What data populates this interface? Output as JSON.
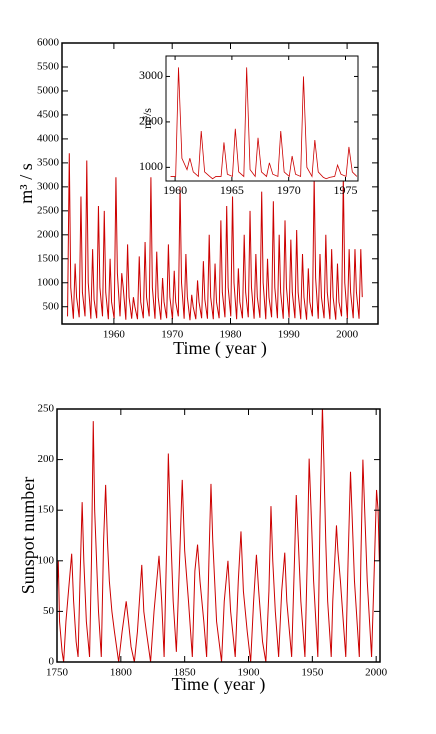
{
  "chart_data": [
    {
      "type": "line",
      "xlabel": "Time ( year )",
      "ylabel": "m³ / s",
      "color": "#cc0000",
      "xlim": [
        1951.1,
        2005.3
      ],
      "ylim": [
        140,
        6000
      ],
      "xticks": [
        1960,
        1970,
        1980,
        1990,
        2000
      ],
      "yticks": [
        500,
        1000,
        1500,
        2000,
        2500,
        3000,
        3500,
        4000,
        4500,
        5000,
        5500,
        6000
      ],
      "x": [
        1952.05,
        1952.35,
        1952.6,
        1953.05,
        1953.35,
        1953.6,
        1954.05,
        1954.35,
        1954.6,
        1955.05,
        1955.35,
        1955.6,
        1956.05,
        1956.35,
        1956.6,
        1957.05,
        1957.35,
        1957.6,
        1958.05,
        1958.35,
        1958.6,
        1959.05,
        1959.35,
        1959.6,
        1960.05,
        1960.35,
        1960.6,
        1961.05,
        1961.35,
        1961.6,
        1962.05,
        1962.35,
        1962.6,
        1963.05,
        1963.35,
        1963.6,
        1964.05,
        1964.35,
        1964.6,
        1965.05,
        1965.35,
        1965.6,
        1966.05,
        1966.35,
        1966.6,
        1967.05,
        1967.35,
        1967.6,
        1968.05,
        1968.35,
        1968.6,
        1969.05,
        1969.35,
        1969.6,
        1970.05,
        1970.35,
        1970.6,
        1971.05,
        1971.35,
        1971.6,
        1972.05,
        1972.35,
        1972.6,
        1973.05,
        1973.35,
        1973.6,
        1974.05,
        1974.35,
        1974.6,
        1975.05,
        1975.35,
        1975.6,
        1976.05,
        1976.35,
        1976.6,
        1977.05,
        1977.35,
        1977.6,
        1978.05,
        1978.35,
        1978.6,
        1979.05,
        1979.35,
        1979.6,
        1980.05,
        1980.35,
        1980.6,
        1981.05,
        1981.35,
        1981.6,
        1982.05,
        1982.35,
        1982.6,
        1983.05,
        1983.35,
        1983.6,
        1984.05,
        1984.35,
        1984.6,
        1985.05,
        1985.35,
        1985.6,
        1986.05,
        1986.35,
        1986.6,
        1987.05,
        1987.35,
        1987.6,
        1988.05,
        1988.35,
        1988.6,
        1989.05,
        1989.35,
        1989.6,
        1990.05,
        1990.35,
        1990.6,
        1991.05,
        1991.35,
        1991.6,
        1992.05,
        1992.35,
        1992.6,
        1993.05,
        1993.35,
        1993.6,
        1994.05,
        1994.35,
        1994.6,
        1995.05,
        1995.35,
        1995.6,
        1996.05,
        1996.35,
        1996.6,
        1997.05,
        1997.35,
        1997.6,
        1998.05,
        1998.35,
        1998.6,
        1999.05,
        1999.35,
        1999.6,
        2000.05,
        2000.35,
        2000.6,
        2001.05,
        2001.35,
        2001.6,
        2002.05,
        2002.35,
        2002.6
      ],
      "values": [
        300,
        3700,
        900,
        250,
        1400,
        700,
        280,
        2800,
        800,
        300,
        3550,
        1000,
        250,
        1700,
        650,
        260,
        2600,
        900,
        300,
        2500,
        800,
        240,
        1500,
        600,
        250,
        3200,
        1200,
        300,
        1200,
        900,
        230,
        1800,
        700,
        250,
        700,
        500,
        240,
        1550,
        600,
        260,
        1850,
        700,
        300,
        3200,
        900,
        250,
        1650,
        700,
        230,
        1100,
        600,
        260,
        1800,
        700,
        240,
        1250,
        600,
        300,
        3000,
        1000,
        250,
        1600,
        700,
        220,
        750,
        500,
        240,
        1050,
        600,
        260,
        1450,
        650,
        250,
        2000,
        700,
        240,
        1400,
        600,
        260,
        2300,
        800,
        280,
        2600,
        900,
        300,
        2800,
        1000,
        240,
        1300,
        600,
        260,
        2000,
        800,
        280,
        2500,
        900,
        250,
        1600,
        700,
        270,
        2900,
        1000,
        240,
        1500,
        700,
        280,
        2700,
        900,
        260,
        2000,
        800,
        250,
        2300,
        900,
        270,
        1900,
        800,
        260,
        2100,
        800,
        240,
        1600,
        700,
        230,
        1300,
        600,
        300,
        3200,
        1100,
        250,
        1600,
        700,
        260,
        2000,
        800,
        240,
        1700,
        700,
        230,
        1400,
        600,
        300,
        3200,
        1000,
        250,
        1700,
        800,
        260,
        1700,
        800,
        250,
        1700,
        700
      ]
    },
    {
      "type": "line",
      "ylabel": "m³/s",
      "color": "#cc0000",
      "xlim": [
        1959.2,
        1976.1
      ],
      "ylim": [
        700,
        3450
      ],
      "xticks": [
        1960,
        1965,
        1970,
        1975
      ],
      "yticks": [
        1000,
        2000,
        3000
      ],
      "x": [
        1959.6,
        1960.05,
        1960.3,
        1960.6,
        1961.05,
        1961.3,
        1961.6,
        1962.05,
        1962.3,
        1962.6,
        1963.05,
        1963.3,
        1963.6,
        1964.05,
        1964.3,
        1964.6,
        1965.05,
        1965.3,
        1965.6,
        1966.05,
        1966.3,
        1966.6,
        1967.05,
        1967.3,
        1967.6,
        1968.05,
        1968.3,
        1968.6,
        1969.05,
        1969.3,
        1969.6,
        1970.05,
        1970.3,
        1970.6,
        1971.05,
        1971.3,
        1971.6,
        1972.05,
        1972.3,
        1972.6,
        1973.05,
        1973.3,
        1973.6,
        1974.05,
        1974.3,
        1974.6,
        1975.05,
        1975.3,
        1975.6,
        1976.0
      ],
      "values": [
        800,
        800,
        3200,
        1200,
        950,
        1200,
        900,
        800,
        1800,
        900,
        800,
        750,
        800,
        800,
        1550,
        850,
        800,
        1850,
        900,
        800,
        3200,
        950,
        800,
        1650,
        900,
        800,
        1100,
        850,
        800,
        1800,
        900,
        800,
        1250,
        850,
        800,
        3000,
        1000,
        800,
        1600,
        900,
        780,
        750,
        780,
        800,
        1050,
        850,
        800,
        1450,
        900,
        800
      ]
    },
    {
      "type": "line",
      "xlabel": "Time ( year )",
      "ylabel": "Sunspot number",
      "color": "#cc0000",
      "xlim": [
        1750,
        2003
      ],
      "ylim": [
        0,
        250
      ],
      "xticks": [
        1750,
        1800,
        1850,
        1900,
        1950,
        2000
      ],
      "yticks": [
        0,
        50,
        100,
        150,
        200,
        250
      ],
      "x": [
        1750.0,
        1751.0,
        1752.0,
        1754.0,
        1755.2,
        1757.0,
        1759.0,
        1761.5,
        1763.0,
        1765.0,
        1766.5,
        1768.0,
        1769.7,
        1771.0,
        1773.0,
        1775.5,
        1777.0,
        1778.4,
        1779.5,
        1781.0,
        1782.5,
        1784.7,
        1786.5,
        1788.1,
        1789.5,
        1791.0,
        1793.0,
        1795.0,
        1798.3,
        1801.0,
        1804.2,
        1806.0,
        1808.0,
        1810.6,
        1813.0,
        1816.4,
        1818.0,
        1820.0,
        1823.3,
        1826.0,
        1829.9,
        1832.0,
        1833.9,
        1836.0,
        1837.2,
        1839.0,
        1841.0,
        1843.5,
        1846.0,
        1848.1,
        1850.0,
        1853.0,
        1856.0,
        1858.0,
        1860.1,
        1862.0,
        1865.0,
        1867.2,
        1869.0,
        1870.6,
        1872.0,
        1875.0,
        1878.9,
        1881.0,
        1883.9,
        1886.0,
        1889.6,
        1892.0,
        1894.1,
        1896.0,
        1899.0,
        1901.7,
        1904.0,
        1906.2,
        1908.0,
        1911.0,
        1913.6,
        1916.0,
        1917.6,
        1919.0,
        1921.0,
        1923.6,
        1926.0,
        1928.4,
        1930.0,
        1933.8,
        1936.0,
        1937.4,
        1939.0,
        1941.0,
        1944.2,
        1946.0,
        1947.5,
        1949.0,
        1951.0,
        1954.3,
        1956.0,
        1957.9,
        1959.0,
        1960.5,
        1962.0,
        1964.8,
        1966.0,
        1968.9,
        1970.0,
        1972.0,
        1976.2,
        1978.0,
        1979.9,
        1981.0,
        1983.0,
        1986.8,
        1988.0,
        1989.6,
        1991.0,
        1993.0,
        1996.4,
        1998.0,
        2000.3,
        2001.5,
        2002.5
      ],
      "values": [
        70,
        100,
        40,
        10,
        0,
        40,
        70,
        107,
        60,
        20,
        5,
        80,
        158,
        100,
        40,
        5,
        100,
        238,
        150,
        100,
        50,
        5,
        120,
        175,
        120,
        80,
        50,
        30,
        0,
        30,
        60,
        40,
        15,
        0,
        30,
        96,
        50,
        30,
        0,
        50,
        105,
        60,
        5,
        120,
        206,
        130,
        60,
        10,
        100,
        180,
        110,
        60,
        5,
        90,
        116,
        80,
        40,
        5,
        100,
        176,
        120,
        40,
        0,
        60,
        100,
        50,
        5,
        80,
        129,
        70,
        30,
        0,
        60,
        106,
        70,
        20,
        0,
        70,
        154,
        100,
        50,
        5,
        70,
        108,
        60,
        5,
        100,
        165,
        120,
        60,
        5,
        100,
        201,
        150,
        80,
        5,
        140,
        253,
        200,
        120,
        60,
        5,
        60,
        135,
        110,
        80,
        5,
        100,
        188,
        150,
        80,
        5,
        100,
        200,
        150,
        80,
        5,
        70,
        170,
        150,
        100
      ]
    }
  ]
}
